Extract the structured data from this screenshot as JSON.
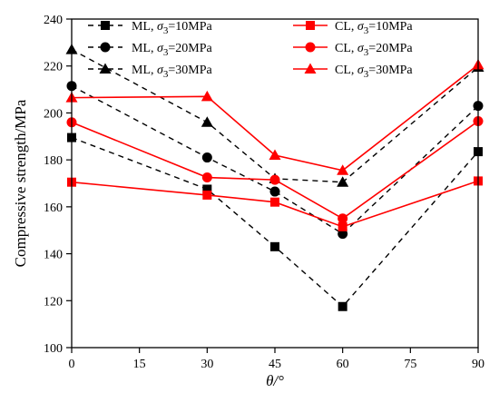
{
  "chart_data": {
    "type": "line",
    "title": "",
    "xlabel": "θ/°",
    "ylabel": "Compressive strength/MPa",
    "xlim": [
      0,
      90
    ],
    "ylim": [
      100,
      240
    ],
    "xticks": [
      0,
      15,
      30,
      45,
      60,
      75,
      90
    ],
    "yticks": [
      100,
      120,
      140,
      160,
      180,
      200,
      220,
      240
    ],
    "grid": false,
    "legend_position": "top-center",
    "x": [
      0,
      30,
      45,
      60,
      90
    ],
    "series": [
      {
        "name": "ML,  σ3=10MPa",
        "label_prefix": "ML,  ",
        "label_suffix": "=10MPa",
        "color": "#000000",
        "dash": true,
        "marker": "square",
        "values": [
          189.5,
          167.5,
          143,
          117.5,
          183.5
        ]
      },
      {
        "name": "ML,  σ3=20MPa",
        "label_prefix": "ML,  ",
        "label_suffix": "=20MPa",
        "color": "#000000",
        "dash": true,
        "marker": "circle",
        "values": [
          211.5,
          181,
          166.5,
          148.5,
          203
        ]
      },
      {
        "name": "ML,  σ3=30MPa",
        "label_prefix": "ML,  ",
        "label_suffix": "=30MPa",
        "color": "#000000",
        "dash": true,
        "marker": "triangle",
        "values": [
          227,
          196,
          172,
          170.5,
          219.5
        ]
      },
      {
        "name": "CL,  σ3=10MPa",
        "label_prefix": "CL,  ",
        "label_suffix": "=10MPa",
        "color": "#ff0000",
        "dash": false,
        "marker": "square",
        "values": [
          170.5,
          165,
          162,
          151.5,
          171
        ]
      },
      {
        "name": "CL,  σ3=20MPa",
        "label_prefix": "CL,  ",
        "label_suffix": "=20MPa",
        "color": "#ff0000",
        "dash": false,
        "marker": "circle",
        "values": [
          196,
          172.5,
          171.5,
          155,
          196.5
        ]
      },
      {
        "name": "CL,  σ3=30MPa",
        "label_prefix": "CL,  ",
        "label_suffix": "=30MPa",
        "color": "#ff0000",
        "dash": false,
        "marker": "triangle",
        "values": [
          206.5,
          207,
          182,
          175.5,
          220.5
        ]
      }
    ]
  }
}
